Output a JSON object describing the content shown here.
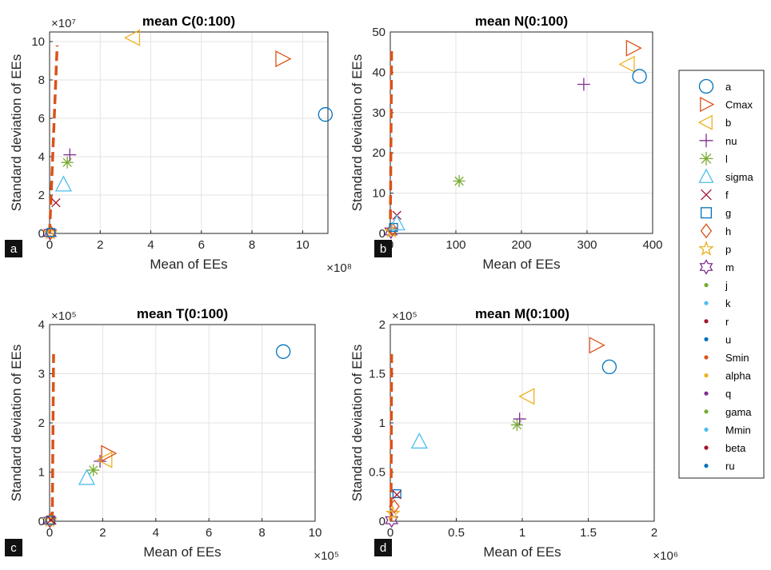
{
  "series_styles": [
    {
      "name": "a",
      "marker": "circle",
      "color": "#0072BD"
    },
    {
      "name": "Cmax",
      "marker": "triangle-right",
      "color": "#D95319"
    },
    {
      "name": "b",
      "marker": "triangle-left",
      "color": "#EDB120"
    },
    {
      "name": "nu",
      "marker": "plus",
      "color": "#7E2F8E"
    },
    {
      "name": "l",
      "marker": "asterisk",
      "color": "#77AC30"
    },
    {
      "name": "sigma",
      "marker": "triangle-up",
      "color": "#4DBEEE"
    },
    {
      "name": "f",
      "marker": "x",
      "color": "#A2142F"
    },
    {
      "name": "g",
      "marker": "square",
      "color": "#0072BD"
    },
    {
      "name": "h",
      "marker": "diamond",
      "color": "#D95319"
    },
    {
      "name": "p",
      "marker": "pentagram",
      "color": "#EDB120"
    },
    {
      "name": "m",
      "marker": "hexagram",
      "color": "#7E2F8E"
    },
    {
      "name": "j",
      "marker": "dot",
      "color": "#77AC30"
    },
    {
      "name": "k",
      "marker": "dot",
      "color": "#4DBEEE"
    },
    {
      "name": "r",
      "marker": "dot",
      "color": "#A2142F"
    },
    {
      "name": "u",
      "marker": "dot",
      "color": "#0072BD"
    },
    {
      "name": "Smin",
      "marker": "dot",
      "color": "#D95319"
    },
    {
      "name": "alpha",
      "marker": "dot",
      "color": "#EDB120"
    },
    {
      "name": "q",
      "marker": "dot",
      "color": "#7E2F8E"
    },
    {
      "name": "gama",
      "marker": "dot",
      "color": "#77AC30"
    },
    {
      "name": "Mmin",
      "marker": "dot",
      "color": "#4DBEEE"
    },
    {
      "name": "beta",
      "marker": "dot",
      "color": "#A2142F"
    },
    {
      "name": "ru",
      "marker": "dot",
      "color": "#0072BD"
    }
  ],
  "threshold_line_color": "#D95319",
  "chart_data": [
    {
      "type": "scatter",
      "panel": "a",
      "title": "mean C(0:100)",
      "xlabel": "Mean of EEs",
      "ylabel": "Standard deviation of EEs",
      "xlim": [
        0,
        11
      ],
      "ylim": [
        0,
        10.5
      ],
      "x_multiplier": "×10⁸",
      "y_multiplier": "×10⁷",
      "xticks": [
        0,
        2,
        4,
        6,
        8,
        10
      ],
      "xtick_labels": [
        "0",
        "2",
        "4",
        "6",
        "8",
        "10"
      ],
      "yticks": [
        0,
        2,
        4,
        6,
        8,
        10
      ],
      "ytick_labels": [
        "0",
        "2",
        "4",
        "6",
        "8",
        "10"
      ],
      "grid": true,
      "threshold_line": {
        "x": [
          0,
          0.3
        ],
        "y": [
          0,
          9.8
        ]
      },
      "points": {
        "a": [
          10.9,
          6.2
        ],
        "Cmax": [
          9.2,
          9.1
        ],
        "b": [
          3.3,
          10.2
        ],
        "nu": [
          0.8,
          4.1
        ],
        "l": [
          0.7,
          3.7
        ],
        "sigma": [
          0.55,
          2.55
        ],
        "f": [
          0.25,
          1.6
        ],
        "g": [
          0.05,
          0.05
        ],
        "h": [
          0.05,
          0.05
        ],
        "p": [
          0.03,
          0.02
        ],
        "m": [
          0.02,
          0.02
        ]
      }
    },
    {
      "type": "scatter",
      "panel": "b",
      "title": "mean N(0:100)",
      "xlabel": "Mean of EEs",
      "ylabel": "Standard deviation of EEs",
      "xlim": [
        0,
        400
      ],
      "ylim": [
        0,
        50
      ],
      "x_multiplier": "",
      "y_multiplier": "",
      "xticks": [
        0,
        100,
        200,
        300,
        400
      ],
      "xtick_labels": [
        "0",
        "100",
        "200",
        "300",
        "400"
      ],
      "yticks": [
        0,
        10,
        20,
        30,
        40,
        50
      ],
      "ytick_labels": [
        "0",
        "10",
        "20",
        "30",
        "40",
        "50"
      ],
      "grid": true,
      "threshold_line": {
        "x": [
          0,
          2
        ],
        "y": [
          0,
          46
        ]
      },
      "points": {
        "a": [
          380,
          39
        ],
        "Cmax": [
          370,
          46
        ],
        "b": [
          362,
          42
        ],
        "nu": [
          295,
          37
        ],
        "l": [
          105,
          13
        ],
        "sigma": [
          10,
          2.5
        ],
        "f": [
          10,
          4.5
        ],
        "g": [
          5,
          1.5
        ],
        "h": [
          3,
          1
        ],
        "p": [
          2,
          0.5
        ],
        "m": [
          1,
          0.5
        ]
      }
    },
    {
      "type": "scatter",
      "panel": "c",
      "title": "mean T(0:100)",
      "xlabel": "Mean of EEs",
      "ylabel": "Standard deviation of EEs",
      "xlim": [
        0,
        10
      ],
      "ylim": [
        0,
        4
      ],
      "x_multiplier": "×10⁵",
      "y_multiplier": "×10⁵",
      "xticks": [
        0,
        2,
        4,
        6,
        8,
        10
      ],
      "xtick_labels": [
        "0",
        "2",
        "4",
        "6",
        "8",
        "10"
      ],
      "yticks": [
        0,
        1,
        2,
        3,
        4
      ],
      "ytick_labels": [
        "0",
        "1",
        "2",
        "3",
        "4"
      ],
      "grid": true,
      "threshold_line": {
        "x": [
          0.1,
          0.15
        ],
        "y": [
          0,
          3.4
        ]
      },
      "points": {
        "a": [
          8.8,
          3.45
        ],
        "Cmax": [
          2.2,
          1.38
        ],
        "b": [
          2.1,
          1.25
        ],
        "nu": [
          1.9,
          1.22
        ],
        "l": [
          1.65,
          1.04
        ],
        "sigma": [
          1.4,
          0.88
        ],
        "f": [
          0.05,
          0.03
        ],
        "g": [
          0.03,
          0.02
        ],
        "h": [
          0.03,
          0.02
        ],
        "p": [
          0.02,
          0.01
        ],
        "m": [
          0.01,
          0.01
        ]
      }
    },
    {
      "type": "scatter",
      "panel": "d",
      "title": "mean M(0:100)",
      "xlabel": "Mean of EEs",
      "ylabel": "Standard deviation of EEs",
      "xlim": [
        0,
        2
      ],
      "ylim": [
        0,
        2
      ],
      "x_multiplier": "×10⁶",
      "y_multiplier": "×10⁵",
      "xticks": [
        0,
        0.5,
        1,
        1.5,
        2
      ],
      "xtick_labels": [
        "0",
        "0.5",
        "1",
        "1.5",
        "2"
      ],
      "yticks": [
        0,
        0.5,
        1,
        1.5,
        2
      ],
      "ytick_labels": [
        "0",
        "0.5",
        "1",
        "1.5",
        "2"
      ],
      "grid": true,
      "threshold_line": {
        "x": [
          0.005,
          0.01
        ],
        "y": [
          0,
          1.7
        ]
      },
      "points": {
        "a": [
          1.66,
          1.57
        ],
        "Cmax": [
          1.56,
          1.79
        ],
        "b": [
          1.04,
          1.27
        ],
        "nu": [
          0.98,
          1.04
        ],
        "l": [
          0.96,
          0.98
        ],
        "sigma": [
          0.22,
          0.81
        ],
        "f": [
          0.05,
          0.27
        ],
        "g": [
          0.05,
          0.28
        ],
        "h": [
          0.03,
          0.15
        ],
        "p": [
          0.02,
          0.08
        ],
        "m": [
          0.01,
          0.01
        ]
      }
    }
  ]
}
